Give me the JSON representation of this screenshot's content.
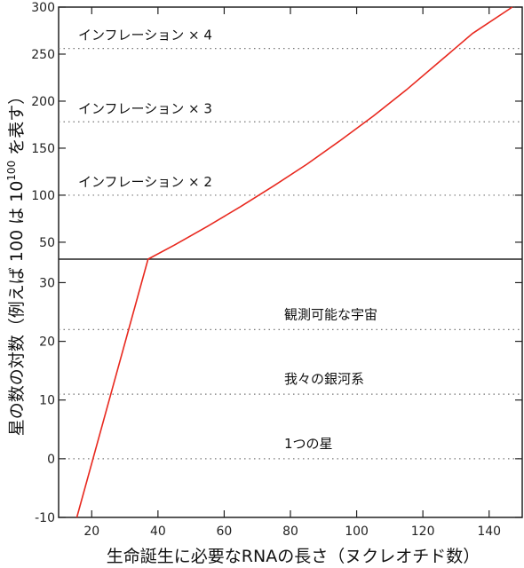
{
  "chart_data": {
    "type": "line",
    "xlabel": "生命誕生に必要なRNAの長さ（ヌクレオチド数）",
    "ylabel": "星の数の対数（例えば 100 は 10^100 を表す）",
    "ylabel_parts": {
      "before": "星の数の対数（例えば 100 は 10",
      "superscript": "100",
      "after": " を表す）"
    },
    "xlim": [
      10,
      150
    ],
    "x_ticks": [
      20,
      40,
      60,
      80,
      100,
      120,
      140
    ],
    "upper_panel": {
      "ylim": [
        32,
        300
      ],
      "y_ticks": [
        50,
        100,
        150,
        200,
        250,
        300
      ],
      "reference_lines": [
        {
          "y": 100,
          "label": "インフレーション × 2"
        },
        {
          "y": 178,
          "label": "インフレーション × 3"
        },
        {
          "y": 256,
          "label": "インフレーション × 4"
        }
      ]
    },
    "lower_panel": {
      "ylim": [
        -10,
        34
      ],
      "y_ticks": [
        -10,
        0,
        10,
        20,
        30
      ],
      "reference_lines": [
        {
          "y": 0,
          "label": "1つの星"
        },
        {
          "y": 11,
          "label": "我々の銀河系"
        },
        {
          "y": 22,
          "label": "観測可能な宇宙"
        }
      ]
    },
    "series": [
      {
        "color": "#e8281e",
        "lower_points": [
          [
            15.5,
            -10
          ],
          [
            37,
            34
          ]
        ],
        "upper_points": [
          [
            37,
            32
          ],
          [
            45,
            47
          ],
          [
            55,
            67
          ],
          [
            65,
            88
          ],
          [
            75,
            110
          ],
          [
            85,
            133
          ],
          [
            95,
            158
          ],
          [
            105,
            184
          ],
          [
            115,
            212
          ],
          [
            125,
            242
          ],
          [
            135,
            272
          ],
          [
            147,
            302
          ]
        ]
      }
    ]
  }
}
